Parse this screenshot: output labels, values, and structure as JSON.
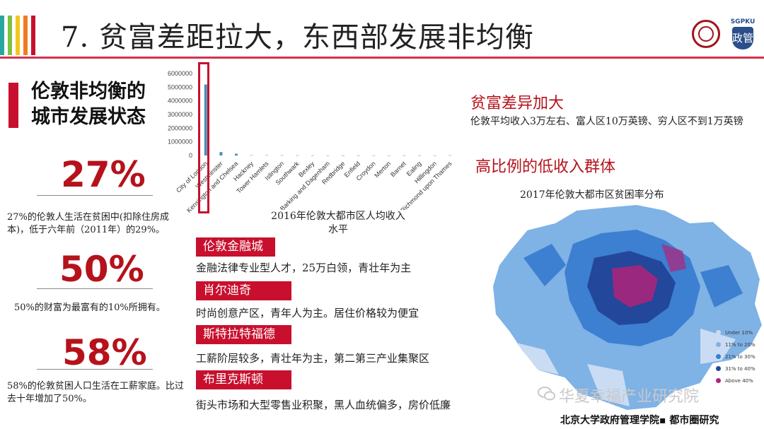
{
  "header": {
    "title": "7. 贫富差距拉大，东西部发展非均衡",
    "stripe_colors": [
      "#2aa6a0",
      "#7cc242",
      "#f2c81f",
      "#f47a20",
      "#c8102e"
    ],
    "logo_right_text": "SGPKU",
    "logo_right_glyph": "政管"
  },
  "left": {
    "heading_line1": "伦敦非均衡的",
    "heading_line2": "城市发展状态",
    "stats": [
      {
        "value": "27%",
        "desc": "27%的伦敦人生活在贫困中(扣除住房成本)，低于六年前（2011年）的29%。"
      },
      {
        "value": "50%",
        "desc": "50%的财富为最富有的10%所拥有。"
      },
      {
        "value": "58%",
        "desc": "58%的伦敦贫困人口生活在工薪家庭。比过去十年增加了50%。"
      }
    ]
  },
  "chart_data": {
    "type": "bar",
    "title": "2016年伦敦大都市区人均收入水平",
    "ylim": [
      0,
      6000000
    ],
    "yticks": [
      "6000000",
      "5000000",
      "4000000",
      "3000000",
      "2000000",
      "1000000",
      "0"
    ],
    "categories": [
      "City of London",
      "Westminster",
      "Kensington and Chelsea",
      "Hackney",
      "Tower Hamlets",
      "Islington",
      "Southwark",
      "Bexley",
      "Barking and Dagenham",
      "Redbridge",
      "Enfield",
      "Croydon",
      "Merton",
      "Barnet",
      "Ealing",
      "Hillingdon",
      "Richmond upon Thames"
    ],
    "values": [
      5200000,
      250000,
      130000,
      20000,
      20000,
      15000,
      12000,
      5000,
      5000,
      5000,
      5000,
      5000,
      5000,
      8000,
      8000,
      6000,
      12000
    ],
    "bar_color": "#4a90b8"
  },
  "districts": [
    {
      "name": "伦敦金融城",
      "desc": "金融法律专业型人才，25万白领，青壮年为主"
    },
    {
      "name": "肖尔迪奇",
      "desc": "时尚创意产区，青年人为主。居住价格较为便宜"
    },
    {
      "name": "斯特拉特福德",
      "desc": "工薪阶层较多，青壮年为主，第二第三产业集聚区"
    },
    {
      "name": "布里克斯顿",
      "desc": "街头市场和大型零售业积聚，黑人血统偏多，房价低廉"
    }
  ],
  "right": {
    "title1": "贫富差异加大",
    "text": "伦敦平均收入3万左右、富人区10万英镑、穷人区不到1万英镑",
    "title2": "高比例的低收入群体",
    "map_title": "2017年伦敦大都市区贫困率分布",
    "legend": [
      {
        "label": "Under 10%",
        "color": "#c9dcf3"
      },
      {
        "label": "11% to 20%",
        "color": "#7fb2e5"
      },
      {
        "label": "21% to 30%",
        "color": "#3d7fd1"
      },
      {
        "label": "31% to 40%",
        "color": "#23479a"
      },
      {
        "label": "Above 40%",
        "color": "#b0237a"
      }
    ]
  },
  "watermark": "华夏幸福产业研究院",
  "footer": "北京大学政府管理学院▪ 都市圈研究"
}
